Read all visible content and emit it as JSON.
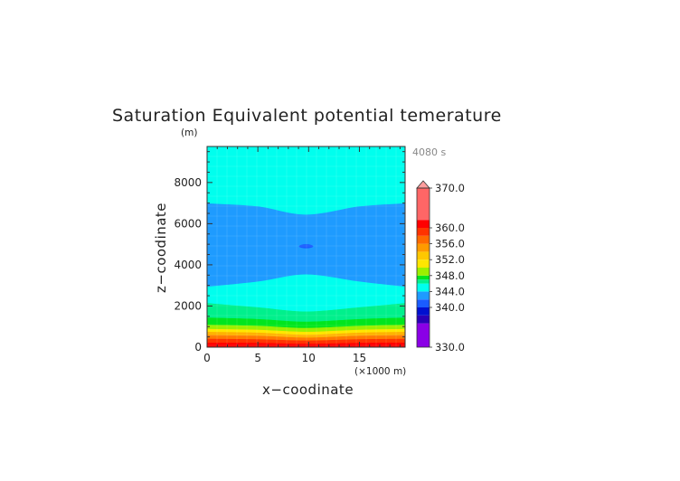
{
  "chart_data": {
    "type": "heatmap",
    "title": "Saturation Equivalent potential temerature",
    "xlabel": "x−coodinate",
    "ylabel": "z−coodinate",
    "x_unit_label": "(×1000 m)",
    "y_unit_label": "(m)",
    "time_label": "4080 s",
    "xlim": [
      0,
      19.5
    ],
    "ylim": [
      0,
      9750
    ],
    "x_ticks": [
      {
        "value": 0,
        "label": "0"
      },
      {
        "value": 5,
        "label": "5"
      },
      {
        "value": 10,
        "label": "10"
      },
      {
        "value": 15,
        "label": "15"
      }
    ],
    "y_ticks": [
      {
        "value": 0,
        "label": "0"
      },
      {
        "value": 2000,
        "label": "2000"
      },
      {
        "value": 4000,
        "label": "4000"
      },
      {
        "value": 6000,
        "label": "6000"
      },
      {
        "value": 8000,
        "label": "8000"
      }
    ],
    "contour_bands": [
      {
        "name": "low-layer-370",
        "color": "#ff0000",
        "x": [
          0,
          5,
          9.75,
          15,
          19.5
        ],
        "z_bottom": [
          0,
          0,
          0,
          0,
          0
        ],
        "z_top": [
          230,
          220,
          180,
          220,
          230
        ]
      },
      {
        "name": "low-layer-362",
        "color": "#ff3300",
        "x": [
          0,
          5,
          9.75,
          15,
          19.5
        ],
        "z_bottom": [
          230,
          220,
          180,
          220,
          230
        ],
        "z_top": [
          420,
          400,
          340,
          400,
          420
        ]
      },
      {
        "name": "low-layer-358",
        "color": "#ff7a00",
        "x": [
          0,
          5,
          9.75,
          15,
          19.5
        ],
        "z_bottom": [
          420,
          400,
          340,
          400,
          420
        ],
        "z_top": [
          600,
          570,
          480,
          570,
          600
        ]
      },
      {
        "name": "low-layer-354",
        "color": "#ffb300",
        "x": [
          0,
          5,
          9.75,
          15,
          19.5
        ],
        "z_bottom": [
          600,
          570,
          480,
          570,
          600
        ],
        "z_top": [
          760,
          720,
          620,
          720,
          760
        ]
      },
      {
        "name": "low-layer-352",
        "color": "#ffe600",
        "x": [
          0,
          5,
          9.75,
          15,
          19.5
        ],
        "z_bottom": [
          760,
          720,
          620,
          720,
          760
        ],
        "z_top": [
          900,
          860,
          760,
          860,
          900
        ]
      },
      {
        "name": "low-layer-350",
        "color": "#9cf000",
        "x": [
          0,
          5,
          9.75,
          15,
          19.5
        ],
        "z_bottom": [
          900,
          860,
          760,
          860,
          900
        ],
        "z_top": [
          1100,
          1050,
          950,
          1050,
          1100
        ]
      },
      {
        "name": "low-layer-348",
        "color": "#00e61e",
        "x": [
          0,
          5,
          9.75,
          15,
          19.5
        ],
        "z_bottom": [
          1100,
          1050,
          950,
          1050,
          1100
        ],
        "z_top": [
          1450,
          1380,
          1250,
          1380,
          1450
        ]
      },
      {
        "name": "low-layer-346",
        "color": "#00f08c",
        "x": [
          0,
          5,
          9.75,
          15,
          19.5
        ],
        "z_bottom": [
          1450,
          1380,
          1250,
          1380,
          1450
        ],
        "z_top": [
          2150,
          1950,
          1750,
          1950,
          2150
        ]
      },
      {
        "name": "mid-layer-344",
        "color": "#00ffee",
        "x": [
          0,
          5,
          9.75,
          15,
          19.5
        ],
        "z_bottom": [
          2150,
          1950,
          1750,
          1950,
          2150
        ],
        "z_top": [
          2950,
          3200,
          3550,
          3200,
          2950
        ]
      },
      {
        "name": "core-layer-342",
        "color": "#1e9bff",
        "x": [
          0,
          5,
          9.75,
          15,
          19.5
        ],
        "z_bottom": [
          2950,
          3200,
          3550,
          3200,
          2950
        ],
        "z_top": [
          7000,
          6850,
          6450,
          6850,
          7000
        ]
      },
      {
        "name": "upper-layer-344",
        "color": "#00ffee",
        "x": [
          0,
          5,
          9.75,
          15,
          19.5
        ],
        "z_bottom": [
          7000,
          6850,
          6450,
          6850,
          7000
        ],
        "z_top": [
          9750,
          9750,
          9750,
          9750,
          9750
        ]
      }
    ],
    "minimum_patch": {
      "color": "#1a5cff",
      "x_center": 9.75,
      "z_center": 4900,
      "x_halfwidth": 0.7,
      "z_halfheight": 100
    },
    "colorbar": {
      "range": [
        330,
        370
      ],
      "labels": [
        {
          "value": 370,
          "label": "370.0"
        },
        {
          "value": 360,
          "label": "360.0"
        },
        {
          "value": 356,
          "label": "356.0"
        },
        {
          "value": 352,
          "label": "352.0"
        },
        {
          "value": 348,
          "label": "348.0"
        },
        {
          "value": 344,
          "label": "344.0"
        },
        {
          "value": 340,
          "label": "340.0"
        },
        {
          "value": 330,
          "label": "330.0"
        }
      ],
      "segments": [
        {
          "from": 330,
          "to": 336,
          "color": "#8a00e6"
        },
        {
          "from": 336,
          "to": 338,
          "color": "#2a00b8"
        },
        {
          "from": 338,
          "to": 340,
          "color": "#0010d0"
        },
        {
          "from": 340,
          "to": 342,
          "color": "#1a5cff"
        },
        {
          "from": 342,
          "to": 344,
          "color": "#1e9bff"
        },
        {
          "from": 344,
          "to": 346,
          "color": "#00ffee"
        },
        {
          "from": 346,
          "to": 347,
          "color": "#00f08c"
        },
        {
          "from": 347,
          "to": 348,
          "color": "#00e61e"
        },
        {
          "from": 348,
          "to": 350,
          "color": "#9cf000"
        },
        {
          "from": 350,
          "to": 352,
          "color": "#ffe600"
        },
        {
          "from": 352,
          "to": 354,
          "color": "#ffc800"
        },
        {
          "from": 354,
          "to": 356,
          "color": "#ff9a00"
        },
        {
          "from": 356,
          "to": 358,
          "color": "#ff6a00"
        },
        {
          "from": 358,
          "to": 360,
          "color": "#ff3300"
        },
        {
          "from": 360,
          "to": 362,
          "color": "#ff0000"
        },
        {
          "from": 362,
          "to": 370,
          "color": "#ff6666"
        }
      ],
      "overflow_color": "#ff9e9e"
    }
  }
}
